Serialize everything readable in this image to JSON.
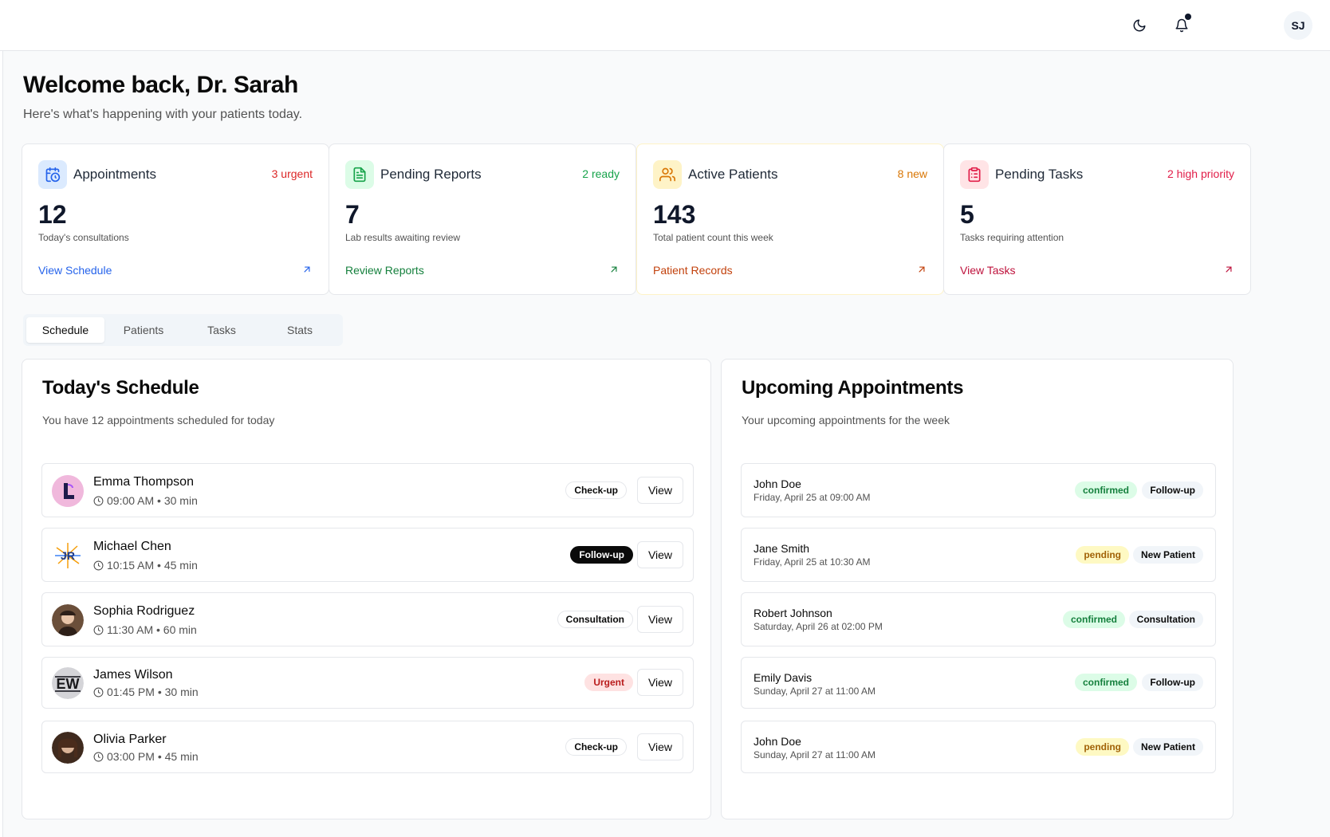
{
  "header": {
    "theme_icon": "moon-icon",
    "notification_icon": "bell-icon",
    "user_initials": "SJ"
  },
  "welcome": {
    "title": "Welcome back, Dr. Sarah",
    "subtitle": "Here's what's happening with your patients today."
  },
  "cards": [
    {
      "title": "Appointments",
      "badge": "3 urgent",
      "value": "12",
      "desc": "Today's consultations",
      "link": "View Schedule",
      "icon": "calendar-clock-icon",
      "accent": "#2563eb",
      "badge_color": "#dc2626",
      "icon_bg": "#dbeafe"
    },
    {
      "title": "Pending Reports",
      "badge": "2 ready",
      "value": "7",
      "desc": "Lab results awaiting review",
      "link": "Review Reports",
      "icon": "file-text-icon",
      "accent": "#15803d",
      "badge_color": "#16a34a",
      "icon_bg": "#dcfce7"
    },
    {
      "title": "Active Patients",
      "badge": "8 new",
      "value": "143",
      "desc": "Total patient count this week",
      "link": "Patient Records",
      "icon": "users-icon",
      "accent": "#c2410c",
      "badge_color": "#d97706",
      "icon_bg": "#fef3c7"
    },
    {
      "title": "Pending Tasks",
      "badge": "2 high priority",
      "value": "5",
      "desc": "Tasks requiring attention",
      "link": "View Tasks",
      "icon": "clipboard-list-icon",
      "accent": "#be123c",
      "badge_color": "#e11d48",
      "icon_bg": "#ffe4e6"
    }
  ],
  "tabs": [
    "Schedule",
    "Patients",
    "Tasks",
    "Stats"
  ],
  "active_tab": "Schedule",
  "schedule": {
    "title": "Today's Schedule",
    "subtitle": "You have 12 appointments scheduled for today",
    "view_label": "View",
    "items": [
      {
        "name": "Emma Thompson",
        "time": "09:00 AM • 30 min",
        "type": "Check-up",
        "style": "outline"
      },
      {
        "name": "Michael Chen",
        "time": "10:15 AM • 45 min",
        "type": "Follow-up",
        "style": "dark"
      },
      {
        "name": "Sophia Rodriguez",
        "time": "11:30 AM • 60 min",
        "type": "Consultation",
        "style": "outline"
      },
      {
        "name": "James Wilson",
        "time": "01:45 PM • 30 min",
        "type": "Urgent",
        "style": "urgent"
      },
      {
        "name": "Olivia Parker",
        "time": "03:00 PM • 45 min",
        "type": "Check-up",
        "style": "outline"
      }
    ]
  },
  "upcoming": {
    "title": "Upcoming Appointments",
    "subtitle": "Your upcoming appointments for the week",
    "items": [
      {
        "name": "John Doe",
        "date": "Friday, April 25 at 09:00 AM",
        "status": "confirmed",
        "type": "Follow-up"
      },
      {
        "name": "Jane Smith",
        "date": "Friday, April 25 at 10:30 AM",
        "status": "pending",
        "type": "New Patient"
      },
      {
        "name": "Robert Johnson",
        "date": "Saturday, April 26 at 02:00 PM",
        "status": "confirmed",
        "type": "Consultation"
      },
      {
        "name": "Emily Davis",
        "date": "Sunday, April 27 at 11:00 AM",
        "status": "confirmed",
        "type": "Follow-up"
      },
      {
        "name": "John Doe",
        "date": "Sunday, April 27 at 11:00 AM",
        "status": "pending",
        "type": "New Patient"
      }
    ]
  }
}
